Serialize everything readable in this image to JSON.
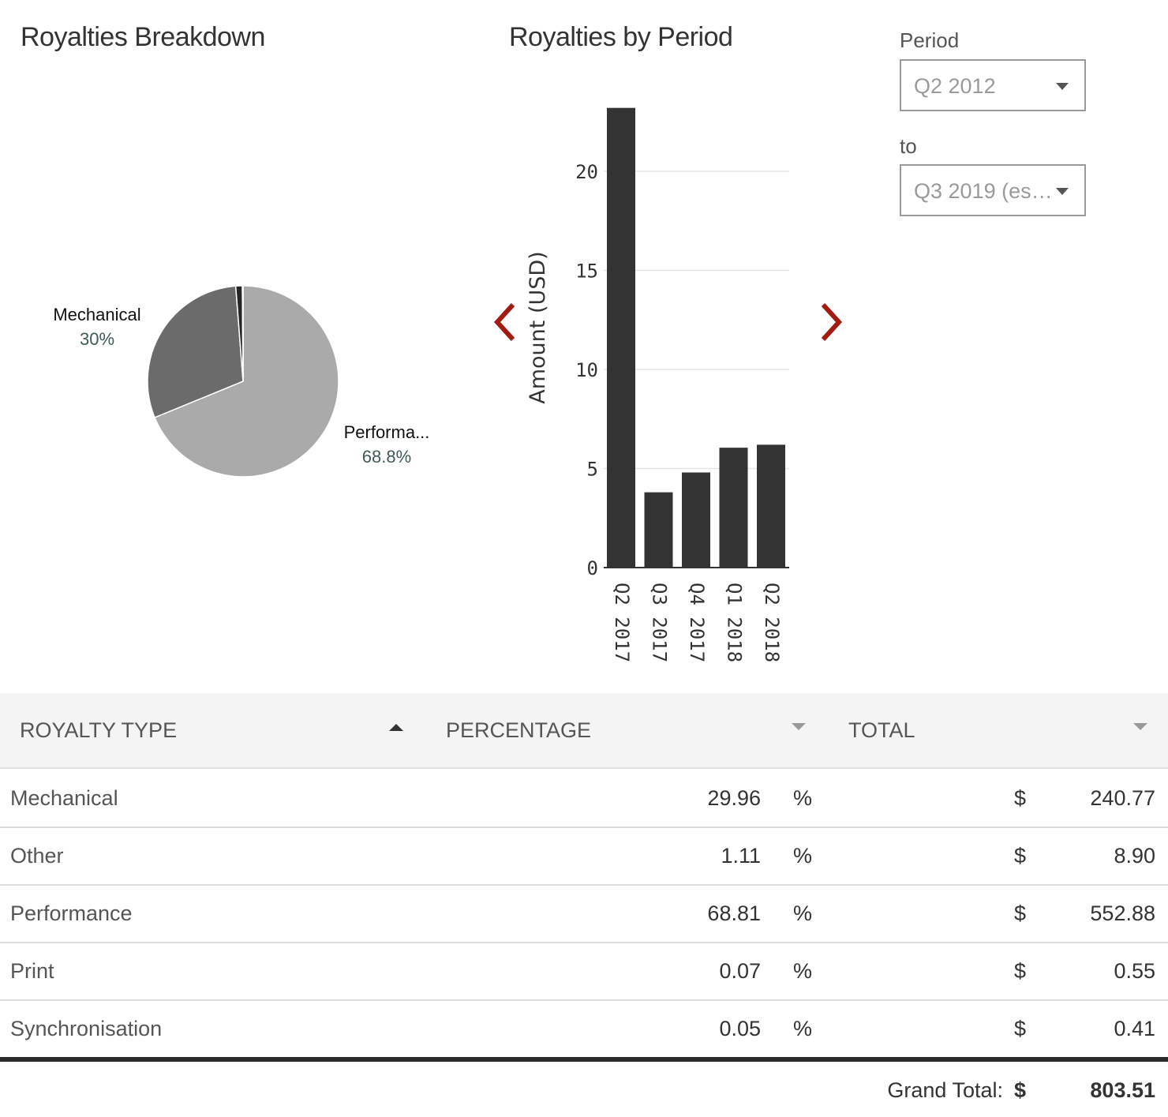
{
  "pie_title": "Royalties Breakdown",
  "bar_title": "Royalties by Period",
  "period": {
    "label": "Period",
    "from_value": "Q2 2012",
    "to_label": "to",
    "to_value": "Q3 2019 (es…"
  },
  "chart_data": [
    {
      "type": "pie",
      "title": "Royalties Breakdown",
      "slices": [
        {
          "name": "Performance",
          "value": 68.81,
          "label": "Performa...",
          "percent_label": "68.8%",
          "color": "#aaaaaa"
        },
        {
          "name": "Mechanical",
          "value": 29.96,
          "label": "Mechanical",
          "percent_label": "30%",
          "color": "#6b6b6b"
        },
        {
          "name": "Other",
          "value": 1.11,
          "color": "#262626"
        },
        {
          "name": "Print",
          "value": 0.07,
          "color": "#cccccc"
        },
        {
          "name": "Synchronisation",
          "value": 0.05,
          "color": "#888888"
        }
      ]
    },
    {
      "type": "bar",
      "title": "Royalties by Period",
      "categories": [
        "Q2 2017",
        "Q3 2017",
        "Q4 2017",
        "Q1 2018",
        "Q2 2018"
      ],
      "values": [
        23.2,
        3.8,
        4.8,
        6.05,
        6.2
      ],
      "ylabel": "Amount (USD)",
      "ylim": [
        0,
        23.2
      ],
      "yticks": [
        0,
        5,
        10,
        15,
        20
      ],
      "grid": true,
      "color": "#333333"
    }
  ],
  "table": {
    "headers": {
      "type": "ROYALTY TYPE",
      "percentage": "PERCENTAGE",
      "total": "TOTAL"
    },
    "rows": [
      {
        "type": "Mechanical",
        "percentage": "29.96",
        "pct_sign": "%",
        "currency": "$",
        "total": "240.77"
      },
      {
        "type": "Other",
        "percentage": "1.11",
        "pct_sign": "%",
        "currency": "$",
        "total": "8.90"
      },
      {
        "type": "Performance",
        "percentage": "68.81",
        "pct_sign": "%",
        "currency": "$",
        "total": "552.88"
      },
      {
        "type": "Print",
        "percentage": "0.07",
        "pct_sign": "%",
        "currency": "$",
        "total": "0.55"
      },
      {
        "type": "Synchronisation",
        "percentage": "0.05",
        "pct_sign": "%",
        "currency": "$",
        "total": "0.41"
      }
    ],
    "grand_total_label": "Grand Total:",
    "grand_total_currency": "$",
    "grand_total_value": "803.51"
  },
  "colors": {
    "accent": "#a31c12",
    "bar": "#333333"
  },
  "icons": {
    "prev": "chevron-left-icon",
    "next": "chevron-right-icon"
  }
}
